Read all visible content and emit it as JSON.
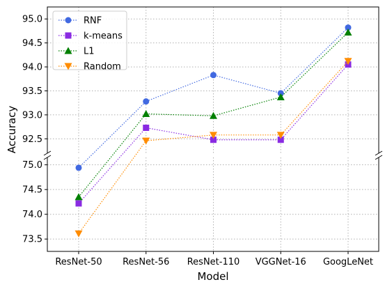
{
  "chart_data": {
    "type": "line",
    "title": "",
    "xlabel": "Model",
    "ylabel": "Accuracy",
    "categories": [
      "ResNet-50",
      "ResNet-56",
      "ResNet-110",
      "VGGNet-16",
      "GoogLeNet"
    ],
    "broken_y_axis": true,
    "upper_panel": {
      "ylim": [
        92.2,
        95.25
      ],
      "yticks": [
        "92.5",
        "93.0",
        "93.5",
        "94.0",
        "94.5",
        "95.0"
      ]
    },
    "lower_panel": {
      "ylim": [
        73.25,
        75.15
      ],
      "yticks": [
        "73.5",
        "74.0",
        "74.5",
        "75.0"
      ]
    },
    "grid": true,
    "legend": "top-left",
    "series": [
      {
        "name": "RNF",
        "values": [
          74.94,
          93.28,
          93.83,
          93.45,
          94.82
        ],
        "color": "#4169e1",
        "marker": "circle"
      },
      {
        "name": "k-means",
        "values": [
          74.22,
          92.73,
          92.48,
          92.48,
          94.05
        ],
        "color": "#8a2be2",
        "marker": "square"
      },
      {
        "name": "L1",
        "values": [
          74.35,
          93.02,
          92.98,
          93.37,
          94.72
        ],
        "color": "#008000",
        "marker": "triangle-up"
      },
      {
        "name": "Random",
        "values": [
          73.61,
          92.46,
          92.58,
          92.58,
          94.12
        ],
        "color": "#ff8c00",
        "marker": "triangle-down"
      }
    ]
  }
}
